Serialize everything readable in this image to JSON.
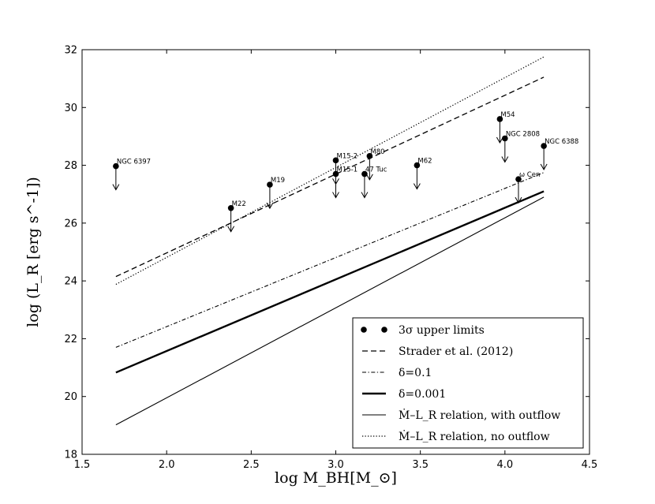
{
  "chart_data": {
    "type": "scatter",
    "xlabel": "log M_BH[M_⊙]",
    "ylabel": "log (L_R [erg s^-1])",
    "xlim": [
      1.5,
      4.5
    ],
    "ylim": [
      18,
      32
    ],
    "xticks": [
      "1.5",
      "2.0",
      "2.5",
      "3.0",
      "3.5",
      "4.0",
      "4.5"
    ],
    "yticks": [
      "18",
      "20",
      "22",
      "24",
      "26",
      "28",
      "30",
      "32"
    ],
    "grid": false,
    "legend_position": "lower-right",
    "points": [
      {
        "name": "NGC 6397",
        "x": 1.7,
        "y": 27.97
      },
      {
        "name": "M22",
        "x": 2.38,
        "y": 26.52
      },
      {
        "name": "M19",
        "x": 2.61,
        "y": 27.33
      },
      {
        "name": "M15-2",
        "x": 3.0,
        "y": 28.17
      },
      {
        "name": "M15-1",
        "x": 3.0,
        "y": 27.7
      },
      {
        "name": "47 Tuc",
        "x": 3.17,
        "y": 27.7
      },
      {
        "name": "M80",
        "x": 3.2,
        "y": 28.32
      },
      {
        "name": "M62",
        "x": 3.48,
        "y": 28.0
      },
      {
        "name": "M54",
        "x": 3.97,
        "y": 29.6
      },
      {
        "name": "NGC 2808",
        "x": 4.0,
        "y": 28.93
      },
      {
        "name": "ω Cen",
        "x": 4.08,
        "y": 27.52
      },
      {
        "name": "NGC 6388",
        "x": 4.23,
        "y": 28.67
      }
    ],
    "series": [
      {
        "name": "Strader et al. (2012)",
        "style": "dashed",
        "x": [
          1.7,
          4.23
        ],
        "y": [
          24.15,
          31.05
        ]
      },
      {
        "name": "δ=0.1",
        "style": "dashdot",
        "x": [
          1.7,
          4.23
        ],
        "y": [
          21.7,
          27.75
        ]
      },
      {
        "name": "δ=0.001",
        "style": "thick",
        "x": [
          1.7,
          4.23
        ],
        "y": [
          20.83,
          27.1
        ]
      },
      {
        "name": "Ṁ–L_R relation, with outflow",
        "style": "solid",
        "x": [
          1.7,
          4.23
        ],
        "y": [
          19.02,
          26.9
        ]
      },
      {
        "name": "Ṁ–L_R relation, no outflow",
        "style": "dotted",
        "x": [
          1.7,
          4.23
        ],
        "y": [
          23.88,
          31.75
        ]
      }
    ],
    "legend": [
      {
        "key": "marker",
        "label": "3σ upper limits"
      },
      {
        "key": "dashed",
        "label": "Strader et al. (2012)"
      },
      {
        "key": "dashdot",
        "label": "δ=0.1"
      },
      {
        "key": "thick",
        "label": "δ=0.001"
      },
      {
        "key": "solid",
        "label": "Ṁ–L_R relation, with outflow"
      },
      {
        "key": "dotted",
        "label": "Ṁ–L_R relation, no outflow"
      }
    ]
  }
}
